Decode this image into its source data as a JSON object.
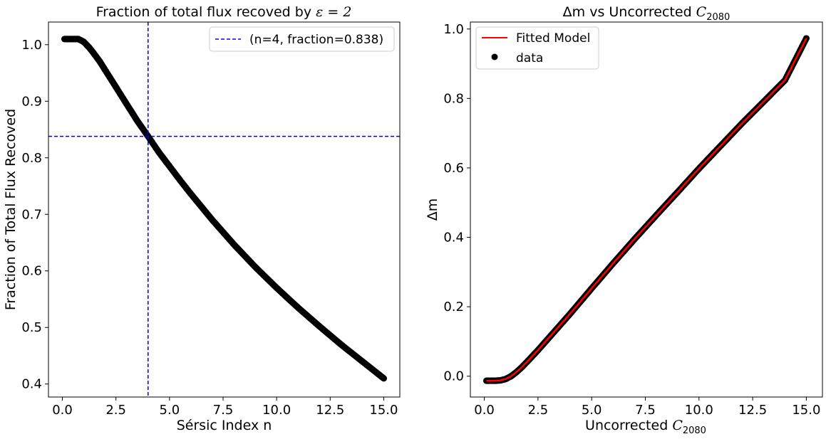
{
  "chart_data": [
    {
      "type": "scatter",
      "title": "Fraction of total flux recoved by ε = 2",
      "title_prefix": "Fraction of total flux recoved by ",
      "title_math": "ε = 2",
      "xlabel": "Sérsic Index n",
      "ylabel": "Fraction of Total Flux Recoved",
      "xlim": [
        -0.65,
        15.75
      ],
      "ylim": [
        0.377,
        1.04
      ],
      "xticks": [
        0.0,
        2.5,
        5.0,
        7.5,
        10.0,
        12.5,
        15.0
      ],
      "xtick_labels": [
        "0.0",
        "2.5",
        "5.0",
        "7.5",
        "10.0",
        "12.5",
        "15.0"
      ],
      "yticks": [
        0.4,
        0.5,
        0.6,
        0.7,
        0.8,
        0.9,
        1.0
      ],
      "ytick_labels": [
        "0.4",
        "0.5",
        "0.6",
        "0.7",
        "0.8",
        "0.9",
        "1.0"
      ],
      "series": [
        {
          "name": "data",
          "marker": "circle",
          "color": "#000000",
          "x": [
            0.1,
            0.25,
            0.5,
            0.75,
            1.0,
            1.25,
            1.5,
            1.75,
            2.0,
            2.5,
            3.0,
            3.5,
            4.0,
            4.5,
            5.0,
            5.5,
            6.0,
            7.0,
            8.0,
            9.0,
            10.0,
            11.0,
            12.0,
            13.0,
            14.0,
            15.0
          ],
          "y": [
            1.01,
            1.01,
            1.01,
            1.01,
            1.005,
            0.995,
            0.983,
            0.97,
            0.955,
            0.925,
            0.895,
            0.865,
            0.838,
            0.81,
            0.785,
            0.76,
            0.736,
            0.69,
            0.647,
            0.607,
            0.57,
            0.535,
            0.502,
            0.47,
            0.44,
            0.41
          ]
        }
      ],
      "reference_lines": {
        "legend_label": "(n=4, fraction=0.838)",
        "color": "#0000ff",
        "x": 4,
        "y": 0.838
      },
      "legend_position": "top-right"
    },
    {
      "type": "scatter",
      "title": "Δm vs Uncorrected C2080",
      "title_prefix": "Δm vs Uncorrected ",
      "title_math": "C",
      "title_sub": "2080",
      "xlabel": "Uncorrected C2080",
      "xlabel_prefix": "Uncorrected ",
      "xlabel_math": "C",
      "xlabel_sub": "2080",
      "ylabel": "Δm",
      "xlim": [
        -0.65,
        15.75
      ],
      "ylim": [
        -0.06,
        1.02
      ],
      "xticks": [
        0.0,
        2.5,
        5.0,
        7.5,
        10.0,
        12.5,
        15.0
      ],
      "xtick_labels": [
        "0.0",
        "2.5",
        "5.0",
        "7.5",
        "10.0",
        "12.5",
        "15.0"
      ],
      "yticks": [
        0.0,
        0.2,
        0.4,
        0.6,
        0.8,
        1.0
      ],
      "ytick_labels": [
        "0.0",
        "0.2",
        "0.4",
        "0.6",
        "0.8",
        "1.0"
      ],
      "series": [
        {
          "name": "data",
          "marker": "circle",
          "color": "#000000",
          "x": [
            0.1,
            0.5,
            0.75,
            1.0,
            1.25,
            1.5,
            1.75,
            2.0,
            2.5,
            3.0,
            4.0,
            5.0,
            6.0,
            7.0,
            8.0,
            9.0,
            10.0,
            11.0,
            12.0,
            13.0,
            14.0,
            15.0
          ],
          "y": [
            -0.013,
            -0.013,
            -0.012,
            -0.008,
            0.0,
            0.012,
            0.026,
            0.042,
            0.075,
            0.11,
            0.18,
            0.253,
            0.325,
            0.395,
            0.463,
            0.53,
            0.598,
            0.663,
            0.728,
            0.79,
            0.852,
            0.973
          ]
        },
        {
          "name": "Fitted Model",
          "marker": "line",
          "color": "#ff0000",
          "x": [
            0.1,
            0.5,
            0.75,
            1.0,
            1.25,
            1.5,
            1.75,
            2.0,
            2.5,
            3.0,
            4.0,
            5.0,
            6.0,
            7.0,
            8.0,
            9.0,
            10.0,
            11.0,
            12.0,
            13.0,
            14.0,
            15.0
          ],
          "y": [
            -0.013,
            -0.013,
            -0.012,
            -0.008,
            0.0,
            0.012,
            0.026,
            0.042,
            0.075,
            0.11,
            0.18,
            0.253,
            0.325,
            0.395,
            0.463,
            0.53,
            0.598,
            0.663,
            0.728,
            0.79,
            0.852,
            0.973
          ]
        }
      ],
      "legend": [
        {
          "label": "Fitted Model",
          "symbol": "line",
          "color": "#ff0000"
        },
        {
          "label": "data",
          "symbol": "dot",
          "color": "#000000"
        }
      ],
      "legend_position": "top-left"
    }
  ]
}
